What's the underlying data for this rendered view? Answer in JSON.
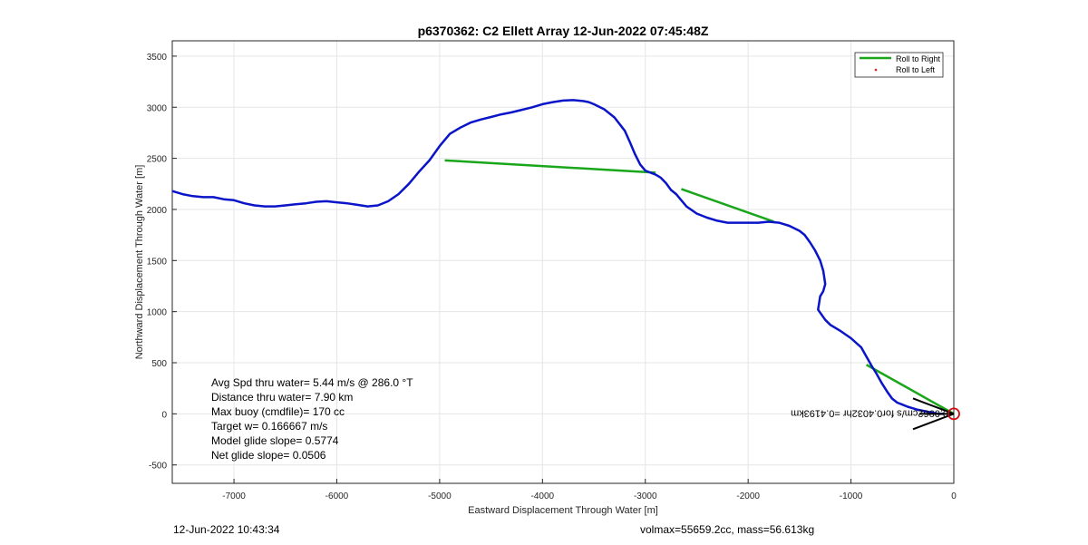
{
  "chart_data": {
    "type": "line",
    "title": "p6370362: C2 Ellett Array 12-Jun-2022 07:45:48Z",
    "xlabel": "Eastward Displacement Through Water [m]",
    "ylabel": "Northward Displacement Through Water [m]",
    "xlim": [
      -7600,
      0
    ],
    "ylim": [
      -680,
      3650
    ],
    "xticks": [
      -7000,
      -6000,
      -5000,
      -4000,
      -3000,
      -2000,
      -1000,
      0
    ],
    "yticks": [
      -500,
      0,
      500,
      1000,
      1500,
      2000,
      2500,
      3000,
      3500
    ],
    "grid": true,
    "legend": {
      "position": "top-right",
      "entries": [
        {
          "label": "Roll to Right",
          "color": "#1aa61a",
          "marker": "line"
        },
        {
          "label": "Roll to Left",
          "color": "#e02020",
          "marker": "dot"
        }
      ]
    },
    "series": [
      {
        "color": "#0a14c8",
        "x": [
          -7600,
          -7500,
          -7400,
          -7300,
          -7200,
          -7100,
          -7000,
          -6900,
          -6800,
          -6700,
          -6600,
          -6500,
          -6400,
          -6300,
          -6200,
          -6100,
          -6000,
          -5900,
          -5800,
          -5700,
          -5600,
          -5500,
          -5400,
          -5300,
          -5200,
          -5100,
          -5000,
          -4900,
          -4800,
          -4700,
          -4600,
          -4500,
          -4400,
          -4300,
          -4200,
          -4100,
          -4000,
          -3900,
          -3800,
          -3700,
          -3600,
          -3550,
          -3500,
          -3400,
          -3300,
          -3200,
          -3150,
          -3100,
          -3050,
          -3000,
          -2950,
          -2900,
          -2880,
          -2850,
          -2800,
          -2750,
          -2700,
          -2650,
          -2600,
          -2500,
          -2400,
          -2300,
          -2200,
          -2100,
          -2000,
          -1900,
          -1800,
          -1700,
          -1600,
          -1500,
          -1450,
          -1400,
          -1350,
          -1300,
          -1270,
          -1250,
          -1270,
          -1300,
          -1320,
          -1300,
          -1250,
          -1200,
          -1100,
          -1000,
          -900,
          -850,
          -800,
          -750,
          -700,
          -650,
          -600,
          -550,
          -500,
          -450,
          -400,
          -350,
          -300,
          -250,
          -200,
          -150,
          -100
        ],
        "y": [
          2180,
          2150,
          2130,
          2120,
          2120,
          2100,
          2090,
          2060,
          2040,
          2030,
          2030,
          2040,
          2050,
          2060,
          2075,
          2080,
          2070,
          2060,
          2045,
          2030,
          2040,
          2080,
          2150,
          2250,
          2370,
          2480,
          2620,
          2740,
          2800,
          2850,
          2880,
          2905,
          2930,
          2950,
          2975,
          3000,
          3030,
          3050,
          3065,
          3070,
          3060,
          3050,
          3030,
          2980,
          2900,
          2770,
          2660,
          2540,
          2440,
          2380,
          2360,
          2340,
          2330,
          2310,
          2260,
          2190,
          2150,
          2090,
          2030,
          1960,
          1920,
          1890,
          1870,
          1870,
          1870,
          1870,
          1880,
          1870,
          1840,
          1790,
          1750,
          1680,
          1600,
          1500,
          1400,
          1270,
          1200,
          1150,
          1020,
          990,
          920,
          870,
          810,
          740,
          650,
          560,
          470,
          390,
          300,
          220,
          150,
          110,
          90,
          70,
          55,
          40,
          30,
          20,
          10,
          0,
          0
        ],
        "jumps": [
          [
            -4950,
            2480,
            -2900,
            2360
          ],
          [
            -2650,
            2200,
            -1750,
            1880
          ],
          [
            -850,
            480,
            0,
            0
          ]
        ]
      }
    ],
    "annotations": [
      "Avg Spd thru water=  5.44 m/s @ 286.0 °T",
      "Distance thru water=  7.90 km",
      "Max buoy (cmdfile)= 170 cc",
      "Target w= 0.166667 m/s",
      "Model glide slope= 0.5774",
      "Net glide slope= 0.0506"
    ],
    "current_label": "0.0962cm/s for0.4032hr =0.4193km",
    "end_marker": {
      "x": 0,
      "y": 0,
      "color": "#d01010"
    }
  },
  "footer": {
    "left": "12-Jun-2022 10:43:34",
    "right": "volmax=55659.2cc, mass=56.613kg"
  }
}
